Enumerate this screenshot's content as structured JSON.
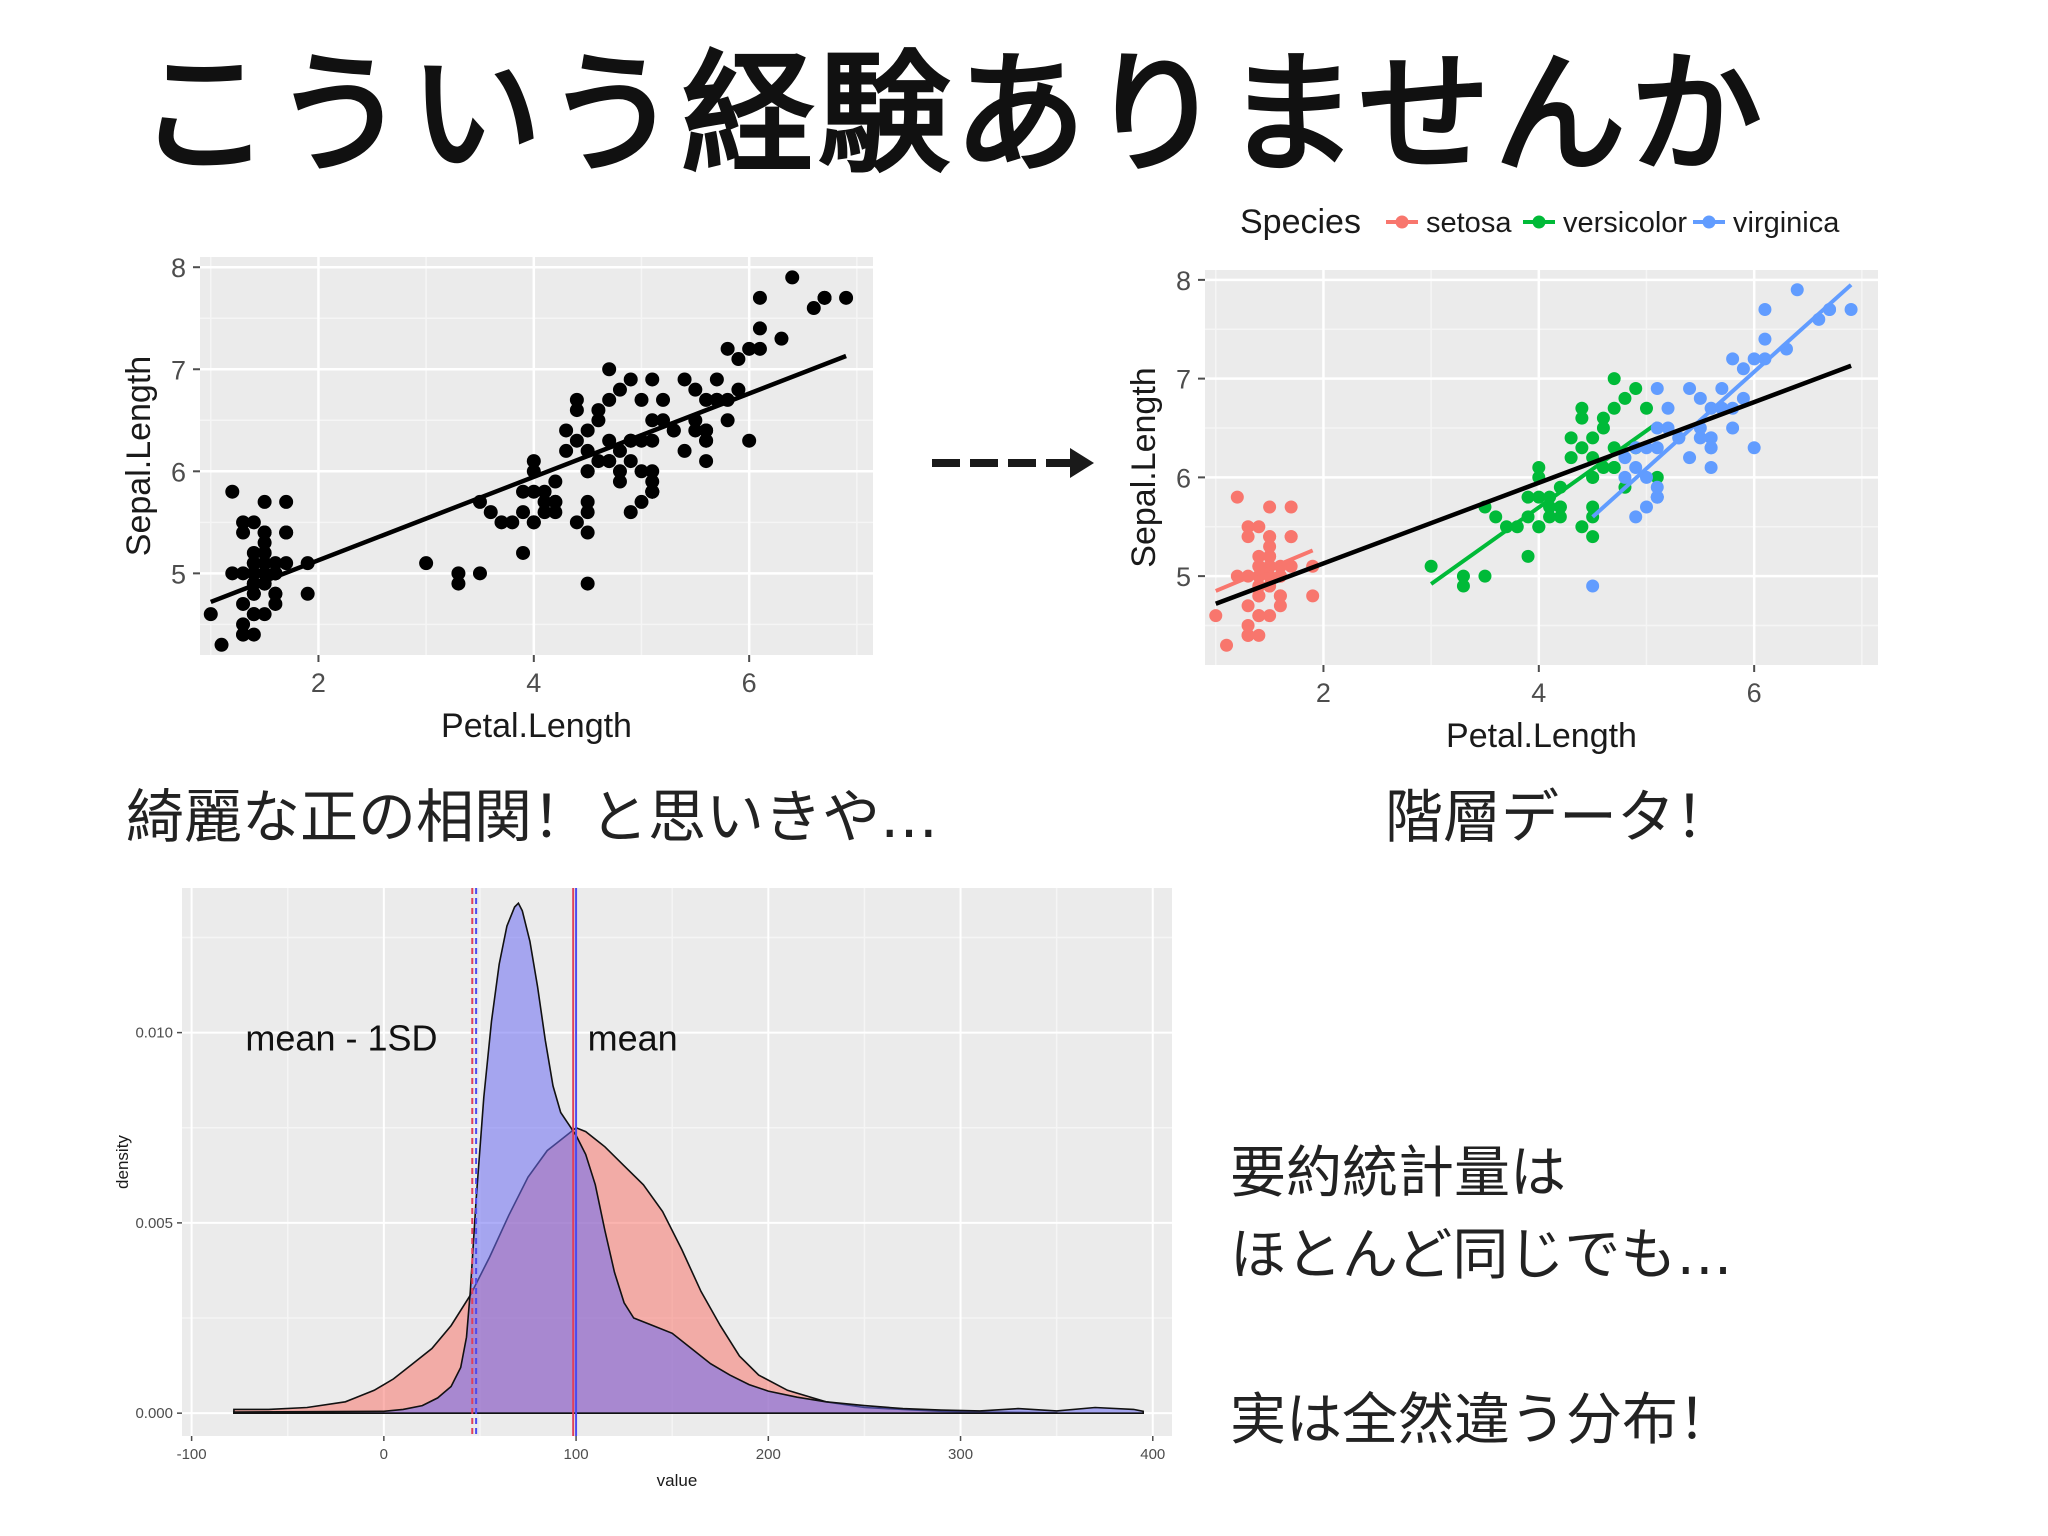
{
  "slide": {
    "title": "こういう経験ありませんか",
    "caption_left": "綺麗な正の相関！と思いきや…",
    "caption_right": "階層データ！",
    "note_line1": "要約統計量は",
    "note_line2": "ほとんど同じでも…",
    "note_line3": "実は全然違う分布！"
  },
  "chart_data": [
    {
      "id": "scatter_plain",
      "type": "scatter",
      "xlabel": "Petal.Length",
      "ylabel": "Sepal.Length",
      "xlim": [
        0.9,
        7.15
      ],
      "ylim": [
        4.2,
        8.1
      ],
      "xticks": [
        "2",
        "4",
        "6"
      ],
      "yticks": [
        "5",
        "6",
        "7",
        "8"
      ],
      "grid": true,
      "color": "#000000",
      "fit_line": {
        "x": [
          1.0,
          6.9
        ],
        "y": [
          4.72,
          7.13
        ]
      },
      "points": [
        [
          1.4,
          5.1
        ],
        [
          1.4,
          4.9
        ],
        [
          1.3,
          4.7
        ],
        [
          1.5,
          4.6
        ],
        [
          1.4,
          5.0
        ],
        [
          1.7,
          5.4
        ],
        [
          1.4,
          4.6
        ],
        [
          1.5,
          5.0
        ],
        [
          1.4,
          4.4
        ],
        [
          1.5,
          4.9
        ],
        [
          1.5,
          5.4
        ],
        [
          1.6,
          4.8
        ],
        [
          1.4,
          4.8
        ],
        [
          1.1,
          4.3
        ],
        [
          1.2,
          5.8
        ],
        [
          1.5,
          5.7
        ],
        [
          1.3,
          5.4
        ],
        [
          1.4,
          5.1
        ],
        [
          1.7,
          5.7
        ],
        [
          1.5,
          5.1
        ],
        [
          1.7,
          5.4
        ],
        [
          1.5,
          5.1
        ],
        [
          1.0,
          4.6
        ],
        [
          1.7,
          5.1
        ],
        [
          1.9,
          4.8
        ],
        [
          1.6,
          5.0
        ],
        [
          1.6,
          5.0
        ],
        [
          1.5,
          5.2
        ],
        [
          1.4,
          5.2
        ],
        [
          1.6,
          4.7
        ],
        [
          1.6,
          4.8
        ],
        [
          1.5,
          5.4
        ],
        [
          1.5,
          5.2
        ],
        [
          1.4,
          5.5
        ],
        [
          1.5,
          4.9
        ],
        [
          1.2,
          5.0
        ],
        [
          1.3,
          5.5
        ],
        [
          1.4,
          4.9
        ],
        [
          1.3,
          4.4
        ],
        [
          1.5,
          5.1
        ],
        [
          1.3,
          5.0
        ],
        [
          1.3,
          4.5
        ],
        [
          1.3,
          4.4
        ],
        [
          1.6,
          5.0
        ],
        [
          1.9,
          5.1
        ],
        [
          1.4,
          4.8
        ],
        [
          1.6,
          5.1
        ],
        [
          1.4,
          4.6
        ],
        [
          1.5,
          5.3
        ],
        [
          1.4,
          5.0
        ],
        [
          4.7,
          7.0
        ],
        [
          4.5,
          6.4
        ],
        [
          4.9,
          6.9
        ],
        [
          4.0,
          5.5
        ],
        [
          4.6,
          6.5
        ],
        [
          4.5,
          5.7
        ],
        [
          4.7,
          6.3
        ],
        [
          3.3,
          4.9
        ],
        [
          4.6,
          6.6
        ],
        [
          3.9,
          5.2
        ],
        [
          3.5,
          5.0
        ],
        [
          4.2,
          5.9
        ],
        [
          4.0,
          6.0
        ],
        [
          4.7,
          6.1
        ],
        [
          3.6,
          5.6
        ],
        [
          4.4,
          6.7
        ],
        [
          4.5,
          5.6
        ],
        [
          4.1,
          5.8
        ],
        [
          4.5,
          6.2
        ],
        [
          3.9,
          5.6
        ],
        [
          4.8,
          5.9
        ],
        [
          4.0,
          6.1
        ],
        [
          4.9,
          6.3
        ],
        [
          4.7,
          6.1
        ],
        [
          4.3,
          6.4
        ],
        [
          4.4,
          6.6
        ],
        [
          4.8,
          6.8
        ],
        [
          5.0,
          6.7
        ],
        [
          4.5,
          6.0
        ],
        [
          3.5,
          5.7
        ],
        [
          3.8,
          5.5
        ],
        [
          3.7,
          5.5
        ],
        [
          3.9,
          5.8
        ],
        [
          5.1,
          6.0
        ],
        [
          4.5,
          5.4
        ],
        [
          4.5,
          6.0
        ],
        [
          4.7,
          6.7
        ],
        [
          4.4,
          6.3
        ],
        [
          4.1,
          5.6
        ],
        [
          4.0,
          5.5
        ],
        [
          4.4,
          5.5
        ],
        [
          4.6,
          6.1
        ],
        [
          4.0,
          5.8
        ],
        [
          3.3,
          5.0
        ],
        [
          4.2,
          5.6
        ],
        [
          4.2,
          5.7
        ],
        [
          4.2,
          5.7
        ],
        [
          4.3,
          6.2
        ],
        [
          3.0,
          5.1
        ],
        [
          4.1,
          5.7
        ],
        [
          6.0,
          6.3
        ],
        [
          5.1,
          5.8
        ],
        [
          5.9,
          7.1
        ],
        [
          5.6,
          6.3
        ],
        [
          5.8,
          6.5
        ],
        [
          6.6,
          7.6
        ],
        [
          4.5,
          4.9
        ],
        [
          6.3,
          7.3
        ],
        [
          5.8,
          6.7
        ],
        [
          6.1,
          7.2
        ],
        [
          5.1,
          6.5
        ],
        [
          5.3,
          6.4
        ],
        [
          5.5,
          6.8
        ],
        [
          5.0,
          5.7
        ],
        [
          5.1,
          5.8
        ],
        [
          5.3,
          6.4
        ],
        [
          5.5,
          6.5
        ],
        [
          6.7,
          7.7
        ],
        [
          6.9,
          7.7
        ],
        [
          5.0,
          6.0
        ],
        [
          5.7,
          6.9
        ],
        [
          4.9,
          5.6
        ],
        [
          6.7,
          7.7
        ],
        [
          4.9,
          6.3
        ],
        [
          5.7,
          6.7
        ],
        [
          6.0,
          7.2
        ],
        [
          4.8,
          6.2
        ],
        [
          4.9,
          6.1
        ],
        [
          5.6,
          6.4
        ],
        [
          5.8,
          7.2
        ],
        [
          6.1,
          7.4
        ],
        [
          6.4,
          7.9
        ],
        [
          5.6,
          6.4
        ],
        [
          5.1,
          6.3
        ],
        [
          5.6,
          6.1
        ],
        [
          6.1,
          7.7
        ],
        [
          5.6,
          6.3
        ],
        [
          5.5,
          6.4
        ],
        [
          4.8,
          6.0
        ],
        [
          5.4,
          6.9
        ],
        [
          5.6,
          6.7
        ],
        [
          5.1,
          6.9
        ],
        [
          5.1,
          5.8
        ],
        [
          5.9,
          6.8
        ],
        [
          5.7,
          6.7
        ],
        [
          5.2,
          6.7
        ],
        [
          5.0,
          6.3
        ],
        [
          5.2,
          6.5
        ],
        [
          5.4,
          6.2
        ],
        [
          5.1,
          5.9
        ]
      ]
    },
    {
      "id": "scatter_species",
      "type": "scatter",
      "xlabel": "Petal.Length",
      "ylabel": "Sepal.Length",
      "xlim": [
        0.9,
        7.15
      ],
      "ylim": [
        4.1,
        8.1
      ],
      "xticks": [
        "2",
        "4",
        "6"
      ],
      "yticks": [
        "5",
        "6",
        "7",
        "8"
      ],
      "grid": true,
      "legend": {
        "title": "Species",
        "position": "top"
      },
      "overall_fit": {
        "x": [
          1.0,
          6.9
        ],
        "y": [
          4.72,
          7.13
        ],
        "color": "#000000"
      },
      "series": [
        {
          "name": "setosa",
          "color": "#F8766D",
          "range": [
            0,
            50
          ],
          "fit": {
            "x": [
              1.0,
              1.9
            ],
            "y": [
              4.85,
              5.26
            ]
          }
        },
        {
          "name": "versicolor",
          "color": "#00BA38",
          "range": [
            50,
            100
          ],
          "fit": {
            "x": [
              3.0,
              5.1
            ],
            "y": [
              4.92,
              6.55
            ]
          }
        },
        {
          "name": "virginica",
          "color": "#619CFF",
          "range": [
            100,
            150
          ],
          "fit": {
            "x": [
              4.5,
              6.9
            ],
            "y": [
              5.6,
              7.95
            ]
          }
        }
      ]
    },
    {
      "id": "density",
      "type": "area",
      "xlabel": "value",
      "ylabel": "density",
      "xlim": [
        -105,
        410
      ],
      "ylim": [
        -0.0006,
        0.0138
      ],
      "xticks": [
        "-100",
        "0",
        "100",
        "200",
        "300",
        "400"
      ],
      "yticks": [
        "0.000",
        "0.005",
        "0.010"
      ],
      "grid": true,
      "annotations": [
        {
          "text": "mean - 1SD",
          "x": -72,
          "y": 0.0099
        },
        {
          "text": "mean",
          "x": 106,
          "y": 0.0099
        }
      ],
      "vlines": [
        {
          "x": 46,
          "color": "#e0405a",
          "dashed": true
        },
        {
          "x": 48,
          "color": "#4a4af0",
          "dashed": true
        },
        {
          "x": 98.5,
          "color": "#e0405a",
          "dashed": false
        },
        {
          "x": 100,
          "color": "#4a4af0",
          "dashed": false
        }
      ],
      "series": [
        {
          "name": "red",
          "color": "#F8766D",
          "x": [
            -78,
            -60,
            -40,
            -20,
            -5,
            5,
            15,
            25,
            35,
            45,
            55,
            65,
            75,
            85,
            95,
            100,
            105,
            115,
            125,
            135,
            145,
            155,
            165,
            175,
            185,
            195,
            210,
            230,
            250,
            270,
            290,
            310,
            330,
            350
          ],
          "y": [
            0.0001,
            0.0001,
            0.00015,
            0.0003,
            0.0006,
            0.0009,
            0.0013,
            0.0017,
            0.0023,
            0.0031,
            0.0041,
            0.0052,
            0.0062,
            0.0069,
            0.0073,
            0.0075,
            0.0074,
            0.007,
            0.0065,
            0.006,
            0.0053,
            0.0043,
            0.0032,
            0.0023,
            0.0015,
            0.001,
            0.0006,
            0.0003,
            0.00015,
            0.0001,
            5e-05,
            3e-05,
            2e-05,
            1e-05
          ]
        },
        {
          "name": "blue",
          "color": "#6C6CF2",
          "x": [
            -78,
            0,
            10,
            20,
            28,
            35,
            40,
            43,
            45,
            48,
            52,
            56,
            60,
            64,
            68,
            70,
            72,
            76,
            80,
            84,
            88,
            92,
            96,
            100,
            105,
            110,
            115,
            120,
            125,
            130,
            140,
            150,
            160,
            170,
            180,
            190,
            200,
            215,
            230,
            250,
            270,
            290,
            310,
            330,
            350,
            370,
            390,
            395
          ],
          "y": [
            3e-05,
            5e-05,
            0.0001,
            0.0002,
            0.0004,
            0.0007,
            0.0012,
            0.002,
            0.0032,
            0.0056,
            0.0083,
            0.0103,
            0.0118,
            0.0128,
            0.0133,
            0.0134,
            0.0132,
            0.0124,
            0.0112,
            0.0098,
            0.0086,
            0.0079,
            0.0076,
            0.0073,
            0.0068,
            0.006,
            0.0048,
            0.0037,
            0.0029,
            0.0025,
            0.0023,
            0.0021,
            0.0017,
            0.0013,
            0.001,
            0.00075,
            0.00058,
            0.00042,
            0.0003,
            0.0002,
            0.00012,
            8e-05,
            6e-05,
            0.00012,
            6e-05,
            0.00015,
            0.0001,
            5e-05
          ]
        }
      ]
    }
  ]
}
